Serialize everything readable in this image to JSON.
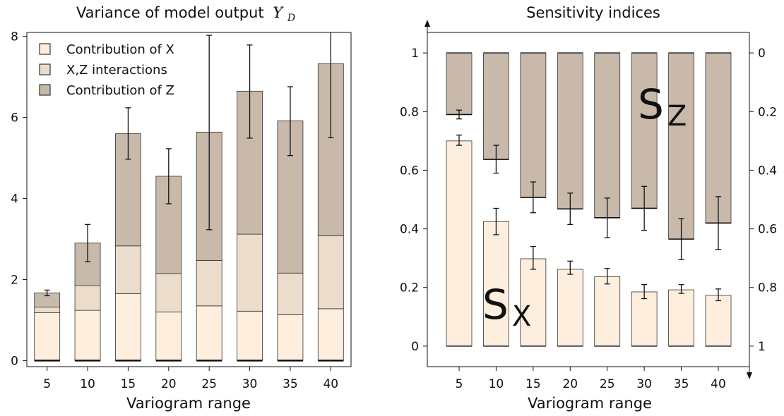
{
  "colors": {
    "x_fill": "#fdeedd",
    "xz_fill": "#ecdccb",
    "z_fill": "#c8b9ab",
    "stroke": "#333333",
    "axis": "#111111"
  },
  "chart_data": [
    {
      "type": "bar",
      "stacked": true,
      "title": "Variance of model output",
      "title_symbol": "Y",
      "title_subscript": "D",
      "xlabel": "Variogram range",
      "ylabel": "",
      "categories": [
        "5",
        "10",
        "15",
        "20",
        "25",
        "30",
        "35",
        "40"
      ],
      "ylim": [
        -0.15,
        8.1
      ],
      "yticks": [
        0,
        2,
        4,
        6,
        8
      ],
      "legend_position": "top-left",
      "legend": [
        "Contribution of X",
        "X,Z interactions",
        "Contribution of Z"
      ],
      "series": [
        {
          "name": "Contribution of X",
          "values": [
            1.18,
            1.24,
            1.65,
            1.2,
            1.35,
            1.22,
            1.13,
            1.28
          ]
        },
        {
          "name": "X,Z interactions",
          "values": [
            0.14,
            0.61,
            1.18,
            0.95,
            1.12,
            1.9,
            1.03,
            1.8
          ]
        },
        {
          "name": "Contribution of Z",
          "values": [
            0.35,
            1.05,
            2.77,
            2.4,
            3.17,
            3.53,
            3.76,
            4.25
          ]
        }
      ],
      "totals": [
        1.67,
        2.9,
        5.6,
        4.55,
        5.64,
        6.65,
        5.92,
        7.33
      ],
      "error_bars": [
        {
          "lower": 1.6,
          "upper": 1.74
        },
        {
          "lower": 2.44,
          "upper": 3.36
        },
        {
          "lower": 4.97,
          "upper": 6.24
        },
        {
          "lower": 3.87,
          "upper": 5.23
        },
        {
          "lower": 3.23,
          "upper": 8.03
        },
        {
          "lower": 5.49,
          "upper": 7.79
        },
        {
          "lower": 5.06,
          "upper": 6.76
        },
        {
          "lower": 5.5,
          "upper": 8.5
        }
      ]
    },
    {
      "type": "bar",
      "title": "Sensitivity indices",
      "xlabel": "Variogram range",
      "ylabel": "",
      "categories": [
        "5",
        "10",
        "15",
        "20",
        "25",
        "30",
        "35",
        "40"
      ],
      "ylim": [
        -0.07,
        1.07
      ],
      "yticks": [
        0,
        0.2,
        0.4,
        0.6,
        0.8,
        1
      ],
      "ytick_labels": [
        "0",
        "0.2",
        "0.4",
        "0.6",
        "0.8",
        "1"
      ],
      "right_yticks": [
        0,
        0.2,
        0.4,
        0.6,
        0.8,
        1
      ],
      "right_ytick_labels": [
        "1",
        "0.8",
        "0.6",
        "0.4",
        "0.2",
        "0"
      ],
      "annotations": [
        {
          "symbol": "S",
          "subscript": "X"
        },
        {
          "symbol": "S",
          "subscript": "Z"
        }
      ],
      "series": [
        {
          "name": "Sx",
          "values": [
            0.7,
            0.425,
            0.298,
            0.262,
            0.237,
            0.185,
            0.192,
            0.173
          ],
          "err_lower": [
            0.685,
            0.38,
            0.262,
            0.245,
            0.212,
            0.162,
            0.18,
            0.155
          ],
          "err_upper": [
            0.72,
            0.47,
            0.34,
            0.29,
            0.265,
            0.21,
            0.21,
            0.195
          ]
        },
        {
          "name": "Sz",
          "values": [
            0.21,
            0.363,
            0.493,
            0.532,
            0.562,
            0.53,
            0.635,
            0.58
          ],
          "err_lower": [
            0.195,
            0.315,
            0.44,
            0.478,
            0.495,
            0.455,
            0.565,
            0.49
          ],
          "err_upper": [
            0.225,
            0.41,
            0.545,
            0.585,
            0.63,
            0.605,
            0.705,
            0.67
          ]
        }
      ]
    }
  ]
}
